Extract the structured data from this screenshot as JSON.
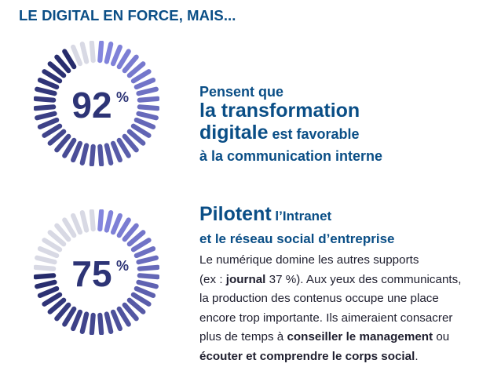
{
  "title": "LE DIGITAL EN FORCE, MAIS...",
  "colors": {
    "title": "#0a4e86",
    "gauge_start": "#8486de",
    "gauge_end": "#262b6b",
    "gauge_empty": "#d8d9e4",
    "value_text": "#2d3476"
  },
  "stats": [
    {
      "value": "92",
      "unit": "%",
      "percent": 92,
      "line1": "Pensent que",
      "line2": "la transformation",
      "line3_big": "digitale",
      "line3_small": " est favorable",
      "line4": "à la communication interne"
    },
    {
      "value": "75",
      "unit": "%",
      "percent": 75,
      "line1_big": "Pilotent",
      "line1_small": " l’Intranet",
      "line2": "et le réseau social d’entreprise",
      "body": {
        "p1": "Le numérique domine les autres supports",
        "p2a": "(ex : ",
        "p2b": "journal",
        "p2c": " 37 %). Aux yeux des communicants,",
        "p3": "la production des contenus occupe une place",
        "p4": "encore trop importante. Ils aimeraient consacrer",
        "p5a": "plus de temps à ",
        "p5b": "conseiller le management",
        "p5c": " ou",
        "p6a": "écouter et comprendre le corps social",
        "p6b": "."
      }
    }
  ]
}
